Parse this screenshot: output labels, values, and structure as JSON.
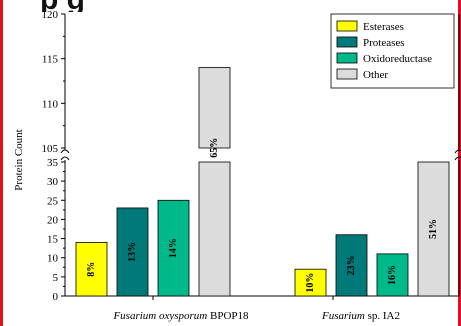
{
  "chart_data": {
    "type": "bar",
    "title": "",
    "xlabel": "",
    "ylabel": "Protein Count",
    "y_axis_break": {
      "lower_range": [
        0,
        35
      ],
      "upper_range": [
        105,
        120
      ]
    },
    "yticks_lower": [
      "0",
      "5",
      "10",
      "15",
      "20",
      "25",
      "30",
      "35"
    ],
    "yticks_upper": [
      "105",
      "110",
      "115",
      "120"
    ],
    "groups": [
      {
        "label_italic": "Fusarium oxysporum",
        "label_rest": " BPOP18"
      },
      {
        "label_italic": "Fusarium",
        "label_rest": " sp. IA2"
      }
    ],
    "series": [
      {
        "name": "Esterases",
        "color": "#ffff00",
        "values": [
          14,
          7
        ],
        "labels": [
          "8%",
          "10%"
        ]
      },
      {
        "name": "Proteases",
        "color": "#007a78",
        "values": [
          23,
          16
        ],
        "labels": [
          "13%",
          "23%"
        ]
      },
      {
        "name": "Oxidoreductase",
        "color": "#00b98a",
        "values": [
          25,
          11
        ],
        "labels": [
          "14%",
          "16%"
        ]
      },
      {
        "name": "Other",
        "color": "#dcdcdc",
        "values": [
          114,
          36
        ],
        "labels": [
          "65%",
          "51%"
        ]
      }
    ],
    "legend_position": "top-right",
    "grid": false
  }
}
